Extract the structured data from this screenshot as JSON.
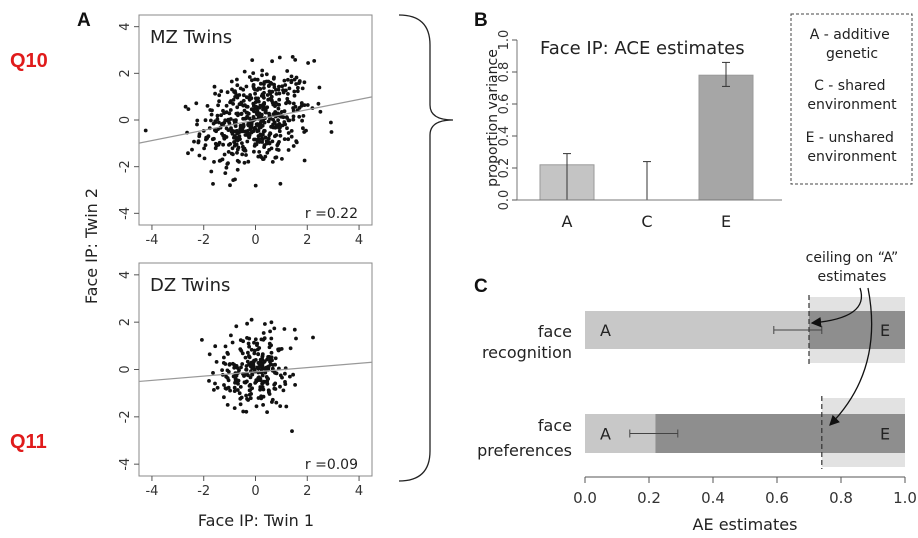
{
  "labels": {
    "q10": "Q10",
    "q11": "Q11",
    "panel_a": "A",
    "panel_b": "B",
    "panel_c": "C"
  },
  "chart_data": [
    {
      "id": "mz",
      "type": "scatter",
      "title": "MZ Twins",
      "xlabel": "Face IP: Twin 1",
      "ylabel": "Face IP: Twin 2",
      "xlim": [
        -4.5,
        4.5
      ],
      "ylim": [
        -4.5,
        4.5
      ],
      "xticks": [
        "-4",
        "-2",
        "0",
        "2",
        "4"
      ],
      "yticks": [
        "-4",
        "-2",
        "0",
        "2",
        "4"
      ],
      "r_label": "r =0.22",
      "n_points": 520,
      "r": 0.22,
      "fit_line": {
        "slope": 0.22,
        "intercept": 0.0
      }
    },
    {
      "id": "dz",
      "type": "scatter",
      "title": "DZ Twins",
      "xlabel": "Face IP: Twin 1",
      "ylabel": "Face IP: Twin 2",
      "xlim": [
        -4.5,
        4.5
      ],
      "ylim": [
        -4.5,
        4.5
      ],
      "xticks": [
        "-4",
        "-2",
        "0",
        "2",
        "4"
      ],
      "yticks": [
        "-4",
        "-2",
        "0",
        "2",
        "4"
      ],
      "r_label": "r =0.09",
      "n_points": 260,
      "r": 0.09,
      "fit_line": {
        "slope": 0.09,
        "intercept": -0.1
      }
    },
    {
      "id": "ace",
      "type": "bar",
      "title": "Face IP: ACE estimates",
      "ylabel": "proportion variance",
      "categories": [
        "A",
        "C",
        "E"
      ],
      "values": [
        0.22,
        0.0,
        0.78
      ],
      "error_low": [
        0.0,
        0.0,
        0.71
      ],
      "error_high": [
        0.29,
        0.24,
        0.86
      ],
      "ylim": [
        0,
        1.0
      ],
      "yticks": [
        "0.0",
        "0.2",
        "0.4",
        "0.6",
        "0.8",
        "1.0"
      ],
      "colors": [
        "#c4c4c4",
        "#c4c4c4",
        "#a6a6a6"
      ],
      "legend": [
        "A - additive genetic",
        "C - shared environment",
        "E - unshared environment"
      ]
    },
    {
      "id": "ae",
      "type": "bar",
      "orientation": "horizontal stacked",
      "xlabel": "AE estimates",
      "xlim": [
        0,
        1.0
      ],
      "xticks": [
        "0.0",
        "0.2",
        "0.4",
        "0.6",
        "0.8",
        "1.0"
      ],
      "rows": [
        {
          "label_line1": "face",
          "label_line2": "recognition",
          "A": 0.7,
          "E": 0.3,
          "ci": [
            0.59,
            0.74
          ],
          "ceiling": 0.7
        },
        {
          "label_line1": "face",
          "label_line2": "preferences",
          "A": 0.22,
          "E": 0.78,
          "ci": [
            0.14,
            0.29
          ],
          "ceiling": 0.74
        }
      ],
      "segment_labels": [
        "A",
        "E"
      ],
      "annotation": [
        "ceiling on “A”",
        "estimates"
      ],
      "colors": {
        "A": "#c8c8c8",
        "E": "#8e8e8e",
        "ceiling_band": "#e2e2e2"
      }
    }
  ]
}
